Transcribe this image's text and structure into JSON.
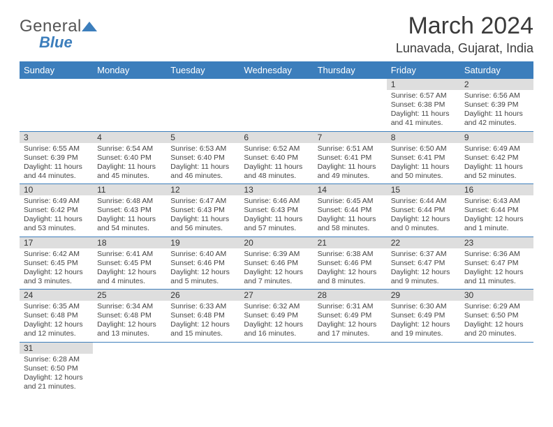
{
  "logo": {
    "part1": "General",
    "part2": "Blue"
  },
  "title": "March 2024",
  "location": "Lunavada, Gujarat, India",
  "colors": {
    "header_bg": "#3c7ebc",
    "header_text": "#ffffff",
    "daynum_bg": "#dedede",
    "row_border": "#3c7ebc",
    "text": "#444444",
    "title_text": "#3a3a3a"
  },
  "day_names": [
    "Sunday",
    "Monday",
    "Tuesday",
    "Wednesday",
    "Thursday",
    "Friday",
    "Saturday"
  ],
  "weeks": [
    [
      {
        "day": "",
        "sunrise": "",
        "sunset": "",
        "daylight": ""
      },
      {
        "day": "",
        "sunrise": "",
        "sunset": "",
        "daylight": ""
      },
      {
        "day": "",
        "sunrise": "",
        "sunset": "",
        "daylight": ""
      },
      {
        "day": "",
        "sunrise": "",
        "sunset": "",
        "daylight": ""
      },
      {
        "day": "",
        "sunrise": "",
        "sunset": "",
        "daylight": ""
      },
      {
        "day": "1",
        "sunrise": "Sunrise: 6:57 AM",
        "sunset": "Sunset: 6:38 PM",
        "daylight": "Daylight: 11 hours and 41 minutes."
      },
      {
        "day": "2",
        "sunrise": "Sunrise: 6:56 AM",
        "sunset": "Sunset: 6:39 PM",
        "daylight": "Daylight: 11 hours and 42 minutes."
      }
    ],
    [
      {
        "day": "3",
        "sunrise": "Sunrise: 6:55 AM",
        "sunset": "Sunset: 6:39 PM",
        "daylight": "Daylight: 11 hours and 44 minutes."
      },
      {
        "day": "4",
        "sunrise": "Sunrise: 6:54 AM",
        "sunset": "Sunset: 6:40 PM",
        "daylight": "Daylight: 11 hours and 45 minutes."
      },
      {
        "day": "5",
        "sunrise": "Sunrise: 6:53 AM",
        "sunset": "Sunset: 6:40 PM",
        "daylight": "Daylight: 11 hours and 46 minutes."
      },
      {
        "day": "6",
        "sunrise": "Sunrise: 6:52 AM",
        "sunset": "Sunset: 6:40 PM",
        "daylight": "Daylight: 11 hours and 48 minutes."
      },
      {
        "day": "7",
        "sunrise": "Sunrise: 6:51 AM",
        "sunset": "Sunset: 6:41 PM",
        "daylight": "Daylight: 11 hours and 49 minutes."
      },
      {
        "day": "8",
        "sunrise": "Sunrise: 6:50 AM",
        "sunset": "Sunset: 6:41 PM",
        "daylight": "Daylight: 11 hours and 50 minutes."
      },
      {
        "day": "9",
        "sunrise": "Sunrise: 6:49 AM",
        "sunset": "Sunset: 6:42 PM",
        "daylight": "Daylight: 11 hours and 52 minutes."
      }
    ],
    [
      {
        "day": "10",
        "sunrise": "Sunrise: 6:49 AM",
        "sunset": "Sunset: 6:42 PM",
        "daylight": "Daylight: 11 hours and 53 minutes."
      },
      {
        "day": "11",
        "sunrise": "Sunrise: 6:48 AM",
        "sunset": "Sunset: 6:43 PM",
        "daylight": "Daylight: 11 hours and 54 minutes."
      },
      {
        "day": "12",
        "sunrise": "Sunrise: 6:47 AM",
        "sunset": "Sunset: 6:43 PM",
        "daylight": "Daylight: 11 hours and 56 minutes."
      },
      {
        "day": "13",
        "sunrise": "Sunrise: 6:46 AM",
        "sunset": "Sunset: 6:43 PM",
        "daylight": "Daylight: 11 hours and 57 minutes."
      },
      {
        "day": "14",
        "sunrise": "Sunrise: 6:45 AM",
        "sunset": "Sunset: 6:44 PM",
        "daylight": "Daylight: 11 hours and 58 minutes."
      },
      {
        "day": "15",
        "sunrise": "Sunrise: 6:44 AM",
        "sunset": "Sunset: 6:44 PM",
        "daylight": "Daylight: 12 hours and 0 minutes."
      },
      {
        "day": "16",
        "sunrise": "Sunrise: 6:43 AM",
        "sunset": "Sunset: 6:44 PM",
        "daylight": "Daylight: 12 hours and 1 minute."
      }
    ],
    [
      {
        "day": "17",
        "sunrise": "Sunrise: 6:42 AM",
        "sunset": "Sunset: 6:45 PM",
        "daylight": "Daylight: 12 hours and 3 minutes."
      },
      {
        "day": "18",
        "sunrise": "Sunrise: 6:41 AM",
        "sunset": "Sunset: 6:45 PM",
        "daylight": "Daylight: 12 hours and 4 minutes."
      },
      {
        "day": "19",
        "sunrise": "Sunrise: 6:40 AM",
        "sunset": "Sunset: 6:46 PM",
        "daylight": "Daylight: 12 hours and 5 minutes."
      },
      {
        "day": "20",
        "sunrise": "Sunrise: 6:39 AM",
        "sunset": "Sunset: 6:46 PM",
        "daylight": "Daylight: 12 hours and 7 minutes."
      },
      {
        "day": "21",
        "sunrise": "Sunrise: 6:38 AM",
        "sunset": "Sunset: 6:46 PM",
        "daylight": "Daylight: 12 hours and 8 minutes."
      },
      {
        "day": "22",
        "sunrise": "Sunrise: 6:37 AM",
        "sunset": "Sunset: 6:47 PM",
        "daylight": "Daylight: 12 hours and 9 minutes."
      },
      {
        "day": "23",
        "sunrise": "Sunrise: 6:36 AM",
        "sunset": "Sunset: 6:47 PM",
        "daylight": "Daylight: 12 hours and 11 minutes."
      }
    ],
    [
      {
        "day": "24",
        "sunrise": "Sunrise: 6:35 AM",
        "sunset": "Sunset: 6:48 PM",
        "daylight": "Daylight: 12 hours and 12 minutes."
      },
      {
        "day": "25",
        "sunrise": "Sunrise: 6:34 AM",
        "sunset": "Sunset: 6:48 PM",
        "daylight": "Daylight: 12 hours and 13 minutes."
      },
      {
        "day": "26",
        "sunrise": "Sunrise: 6:33 AM",
        "sunset": "Sunset: 6:48 PM",
        "daylight": "Daylight: 12 hours and 15 minutes."
      },
      {
        "day": "27",
        "sunrise": "Sunrise: 6:32 AM",
        "sunset": "Sunset: 6:49 PM",
        "daylight": "Daylight: 12 hours and 16 minutes."
      },
      {
        "day": "28",
        "sunrise": "Sunrise: 6:31 AM",
        "sunset": "Sunset: 6:49 PM",
        "daylight": "Daylight: 12 hours and 17 minutes."
      },
      {
        "day": "29",
        "sunrise": "Sunrise: 6:30 AM",
        "sunset": "Sunset: 6:49 PM",
        "daylight": "Daylight: 12 hours and 19 minutes."
      },
      {
        "day": "30",
        "sunrise": "Sunrise: 6:29 AM",
        "sunset": "Sunset: 6:50 PM",
        "daylight": "Daylight: 12 hours and 20 minutes."
      }
    ],
    [
      {
        "day": "31",
        "sunrise": "Sunrise: 6:28 AM",
        "sunset": "Sunset: 6:50 PM",
        "daylight": "Daylight: 12 hours and 21 minutes."
      },
      {
        "day": "",
        "sunrise": "",
        "sunset": "",
        "daylight": ""
      },
      {
        "day": "",
        "sunrise": "",
        "sunset": "",
        "daylight": ""
      },
      {
        "day": "",
        "sunrise": "",
        "sunset": "",
        "daylight": ""
      },
      {
        "day": "",
        "sunrise": "",
        "sunset": "",
        "daylight": ""
      },
      {
        "day": "",
        "sunrise": "",
        "sunset": "",
        "daylight": ""
      },
      {
        "day": "",
        "sunrise": "",
        "sunset": "",
        "daylight": ""
      }
    ]
  ]
}
